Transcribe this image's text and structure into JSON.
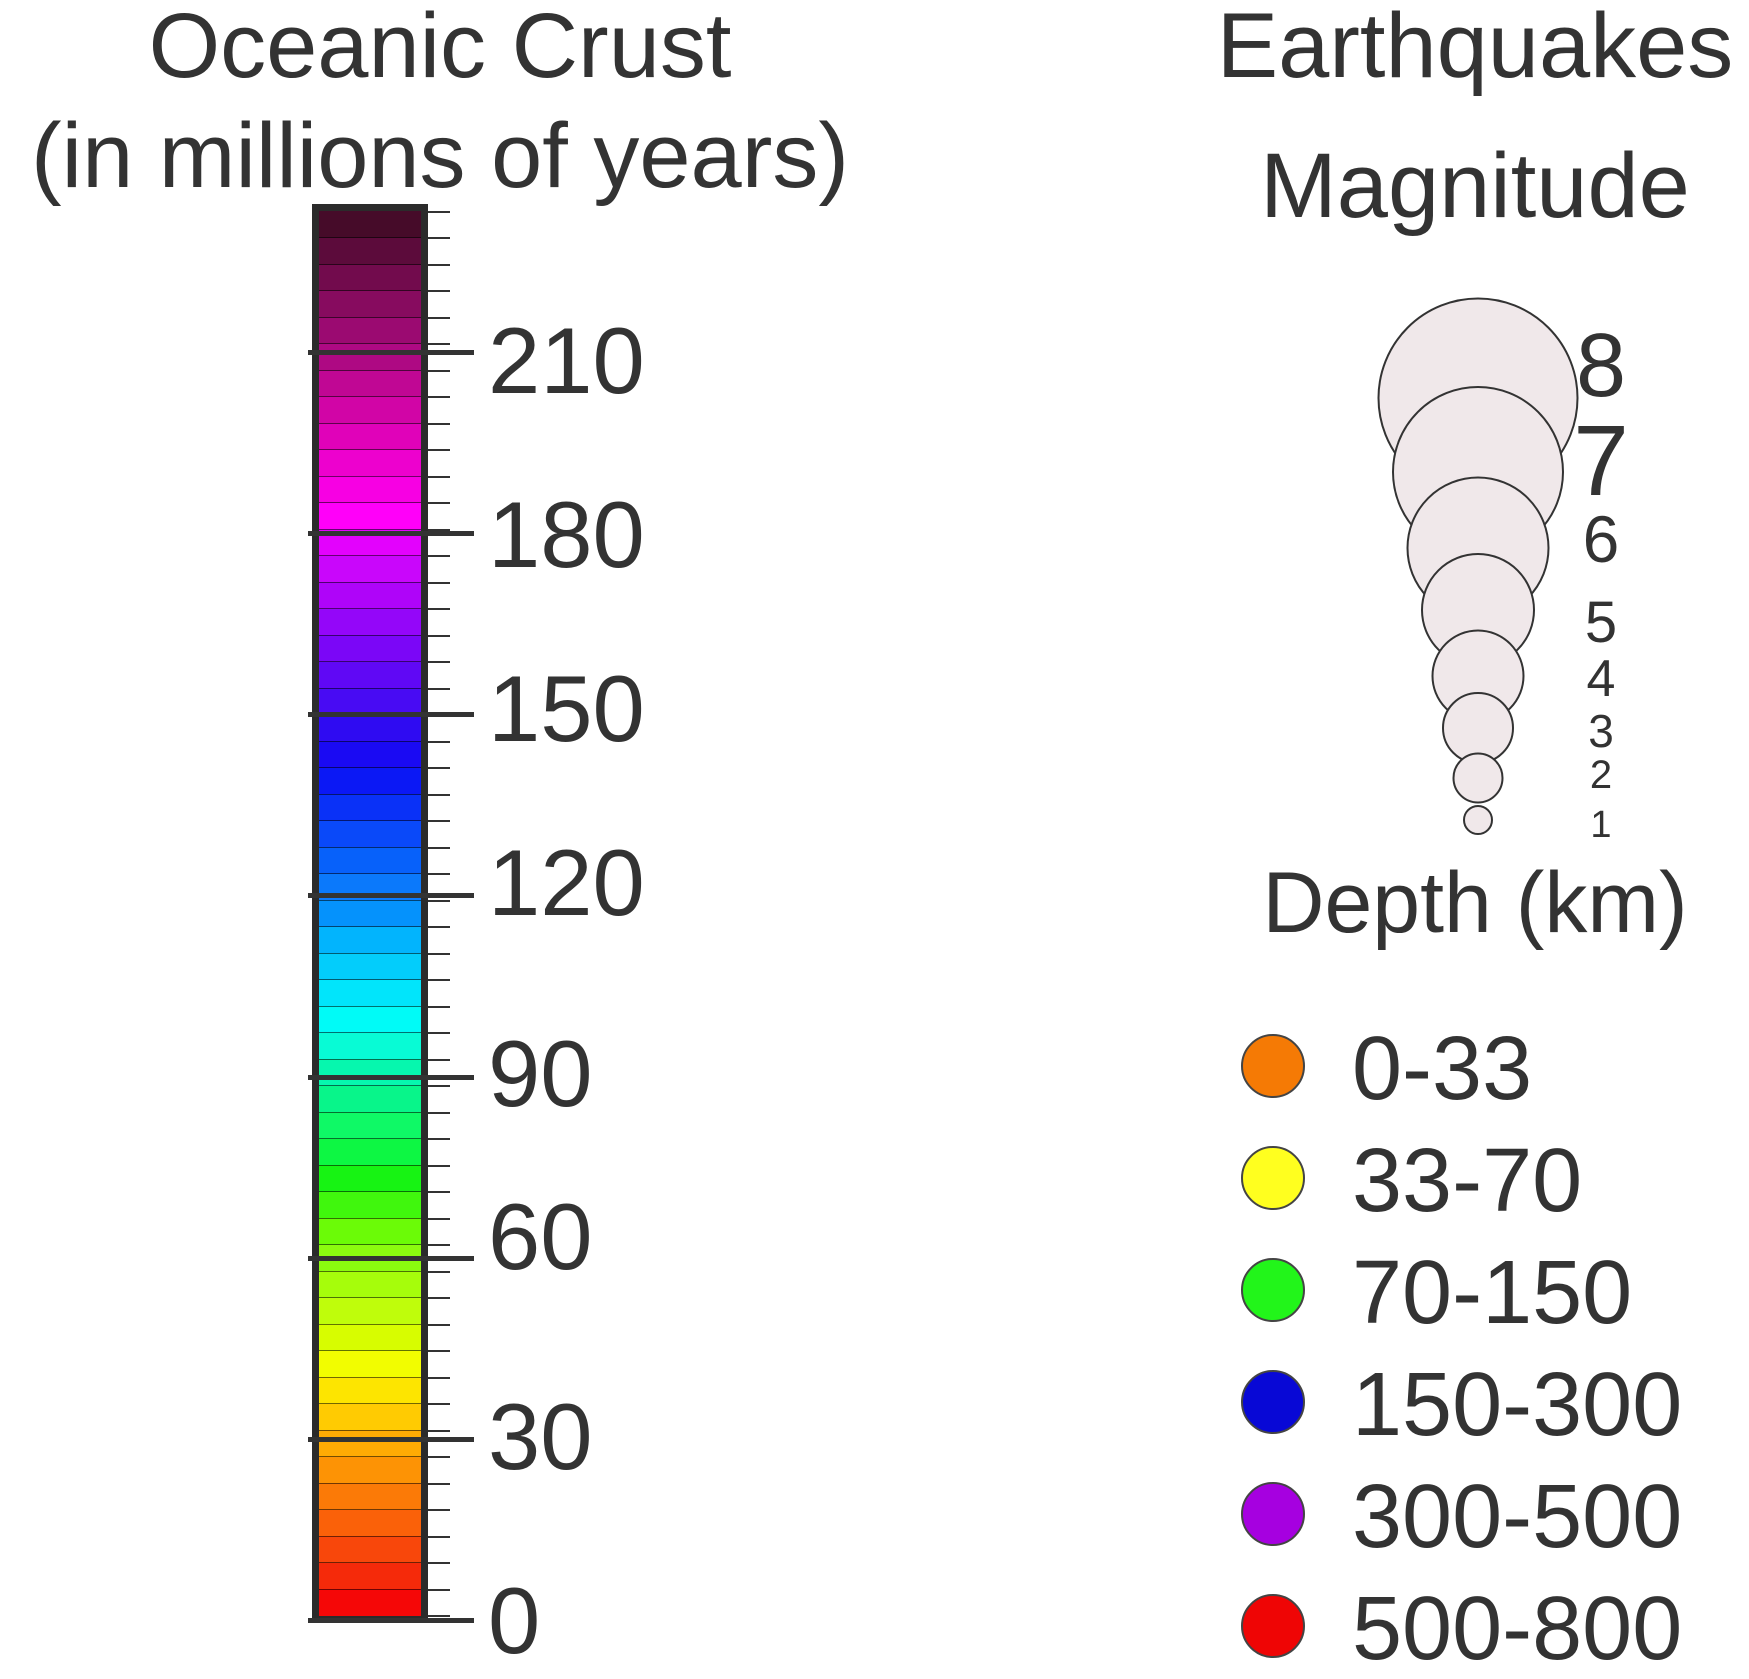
{
  "crust": {
    "title_line1": "Oceanic Crust",
    "title_line2": "(in millions of years)",
    "ticks": [
      "210",
      "180",
      "150",
      "120",
      "90",
      "60",
      "30",
      "0"
    ],
    "colors_bottom_to_top": [
      "#f50707",
      "#f52a0a",
      "#f8470b",
      "#fa6109",
      "#fb7a07",
      "#fd9305",
      "#ffab04",
      "#ffcb02",
      "#fde500",
      "#f2fd00",
      "#d7fd00",
      "#bffd0b",
      "#a6fd0b",
      "#8bfb0f",
      "#6bfb07",
      "#40f70d",
      "#17f313",
      "#0df743",
      "#0ff966",
      "#08f58a",
      "#06f7ae",
      "#08fbd5",
      "#00fbf7",
      "#01e5fb",
      "#03cdfb",
      "#02b4fd",
      "#0592fc",
      "#0b79fb",
      "#0761fa",
      "#0a49f9",
      "#0a31f7",
      "#0b18f5",
      "#1a0af3",
      "#2f0bf2",
      "#480bf3",
      "#6008f5",
      "#7b06f7",
      "#9406f9",
      "#af04f9",
      "#c906fb",
      "#e302fd",
      "#ff00f9",
      "#f700e3",
      "#ed01ce",
      "#e002b9",
      "#d105a6",
      "#c00794",
      "#ae0983",
      "#9b0a71",
      "#870b5f",
      "#720b4d",
      "#5c0b3b",
      "#460b29"
    ]
  },
  "earthquakes": {
    "title_line1": "Earthquakes",
    "title_line2": "Magnitude",
    "magnitudes": [
      {
        "label": "8",
        "value": 8
      },
      {
        "label": "7",
        "value": 7
      },
      {
        "label": "6",
        "value": 6
      },
      {
        "label": "5",
        "value": 5
      },
      {
        "label": "4",
        "value": 4
      },
      {
        "label": "3",
        "value": 3
      },
      {
        "label": "2",
        "value": 2
      },
      {
        "label": "1",
        "value": 1
      }
    ],
    "circle_fill": "#f0e8ea",
    "circle_stroke": "#333333"
  },
  "depth": {
    "title": "Depth (km)",
    "items": [
      {
        "label": "0-33",
        "color": "#f57a05"
      },
      {
        "label": "33-70",
        "color": "#ffff1f"
      },
      {
        "label": "70-150",
        "color": "#22f51a"
      },
      {
        "label": "150-300",
        "color": "#0808d6"
      },
      {
        "label": "300-500",
        "color": "#a600e0"
      },
      {
        "label": "500-800",
        "color": "#ef0505"
      }
    ]
  }
}
